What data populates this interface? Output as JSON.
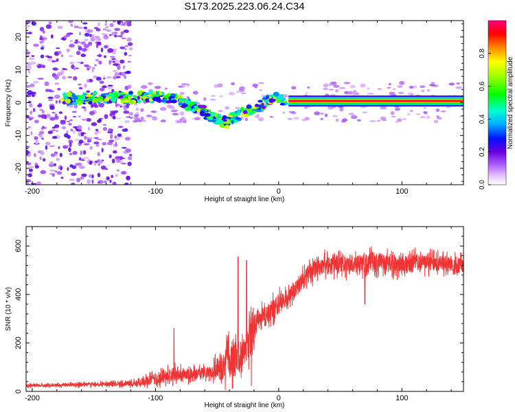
{
  "chart_data": [
    {
      "type": "heatmap",
      "title": "S173.2025.223.06.24.C34",
      "xlabel": "Height of straight line (km)",
      "ylabel": "Frequency (Hz)",
      "xlim": [
        -205,
        150
      ],
      "ylim": [
        -25,
        25
      ],
      "x_ticks": [
        -200,
        -100,
        0,
        100
      ],
      "y_ticks": [
        -20,
        -10,
        0,
        10,
        20
      ],
      "colorbar": {
        "label": "Normalized spectral amplitude",
        "range": [
          0,
          1
        ],
        "ticks": [
          0.0,
          0.2,
          0.4,
          0.6,
          0.8
        ]
      },
      "features": [
        {
          "name": "scattered noise",
          "x_range": [
            -205,
            -120
          ],
          "frequency_range": [
            -25,
            25
          ],
          "amplitude": 0.2
        },
        {
          "name": "drifting signal",
          "points": [
            [
              -175,
              1
            ],
            [
              -150,
              1.5
            ],
            [
              -125,
              1.5
            ],
            [
              -100,
              2
            ],
            [
              -85,
              1.5
            ],
            [
              -70,
              -1
            ],
            [
              -55,
              -4
            ],
            [
              -42,
              -6
            ],
            [
              -30,
              -3
            ],
            [
              -15,
              -1
            ],
            [
              -5,
              1.5
            ],
            [
              5,
              0.8
            ]
          ],
          "amplitude": 0.55
        },
        {
          "name": "carrier line",
          "x_range": [
            8,
            150
          ],
          "frequency": 0.5,
          "amplitude": 1.0
        }
      ]
    },
    {
      "type": "line",
      "xlabel": "Height of straight line (km)",
      "ylabel": "SNR (10 * v/v)",
      "xlim": [
        -205,
        150
      ],
      "ylim": [
        0,
        680
      ],
      "x_ticks": [
        -200,
        -100,
        0,
        100
      ],
      "y_ticks": [
        0,
        200,
        400,
        600
      ],
      "series": [
        {
          "name": "SNR",
          "color": "#f03333",
          "x": [
            -205,
            -180,
            -150,
            -130,
            -115,
            -100,
            -85,
            -70,
            -55,
            -45,
            -35,
            -28,
            -22,
            -18,
            -15,
            -10,
            -5,
            0,
            5,
            10,
            15,
            20,
            25,
            30,
            40,
            50,
            60,
            70,
            80,
            90,
            100,
            110,
            120,
            130,
            140,
            150
          ],
          "y": [
            25,
            25,
            30,
            30,
            35,
            50,
            70,
            70,
            80,
            110,
            130,
            160,
            220,
            280,
            290,
            320,
            340,
            360,
            380,
            400,
            430,
            460,
            490,
            510,
            520,
            525,
            525,
            530,
            530,
            530,
            525,
            530,
            530,
            530,
            525,
            520
          ],
          "noise_amplitude": [
            10,
            10,
            15,
            15,
            20,
            40,
            50,
            40,
            40,
            120,
            150,
            80,
            200,
            60,
            70,
            80,
            70,
            70,
            60,
            60,
            60,
            70,
            70,
            70,
            70,
            70,
            70,
            70,
            70,
            70,
            70,
            70,
            60,
            60,
            60,
            60
          ]
        }
      ],
      "spikes": [
        {
          "x": -85,
          "y": 260
        },
        {
          "x": -33,
          "y": 555
        },
        {
          "x": -26,
          "y": 540
        },
        {
          "x": 70,
          "y": 360
        }
      ]
    }
  ]
}
